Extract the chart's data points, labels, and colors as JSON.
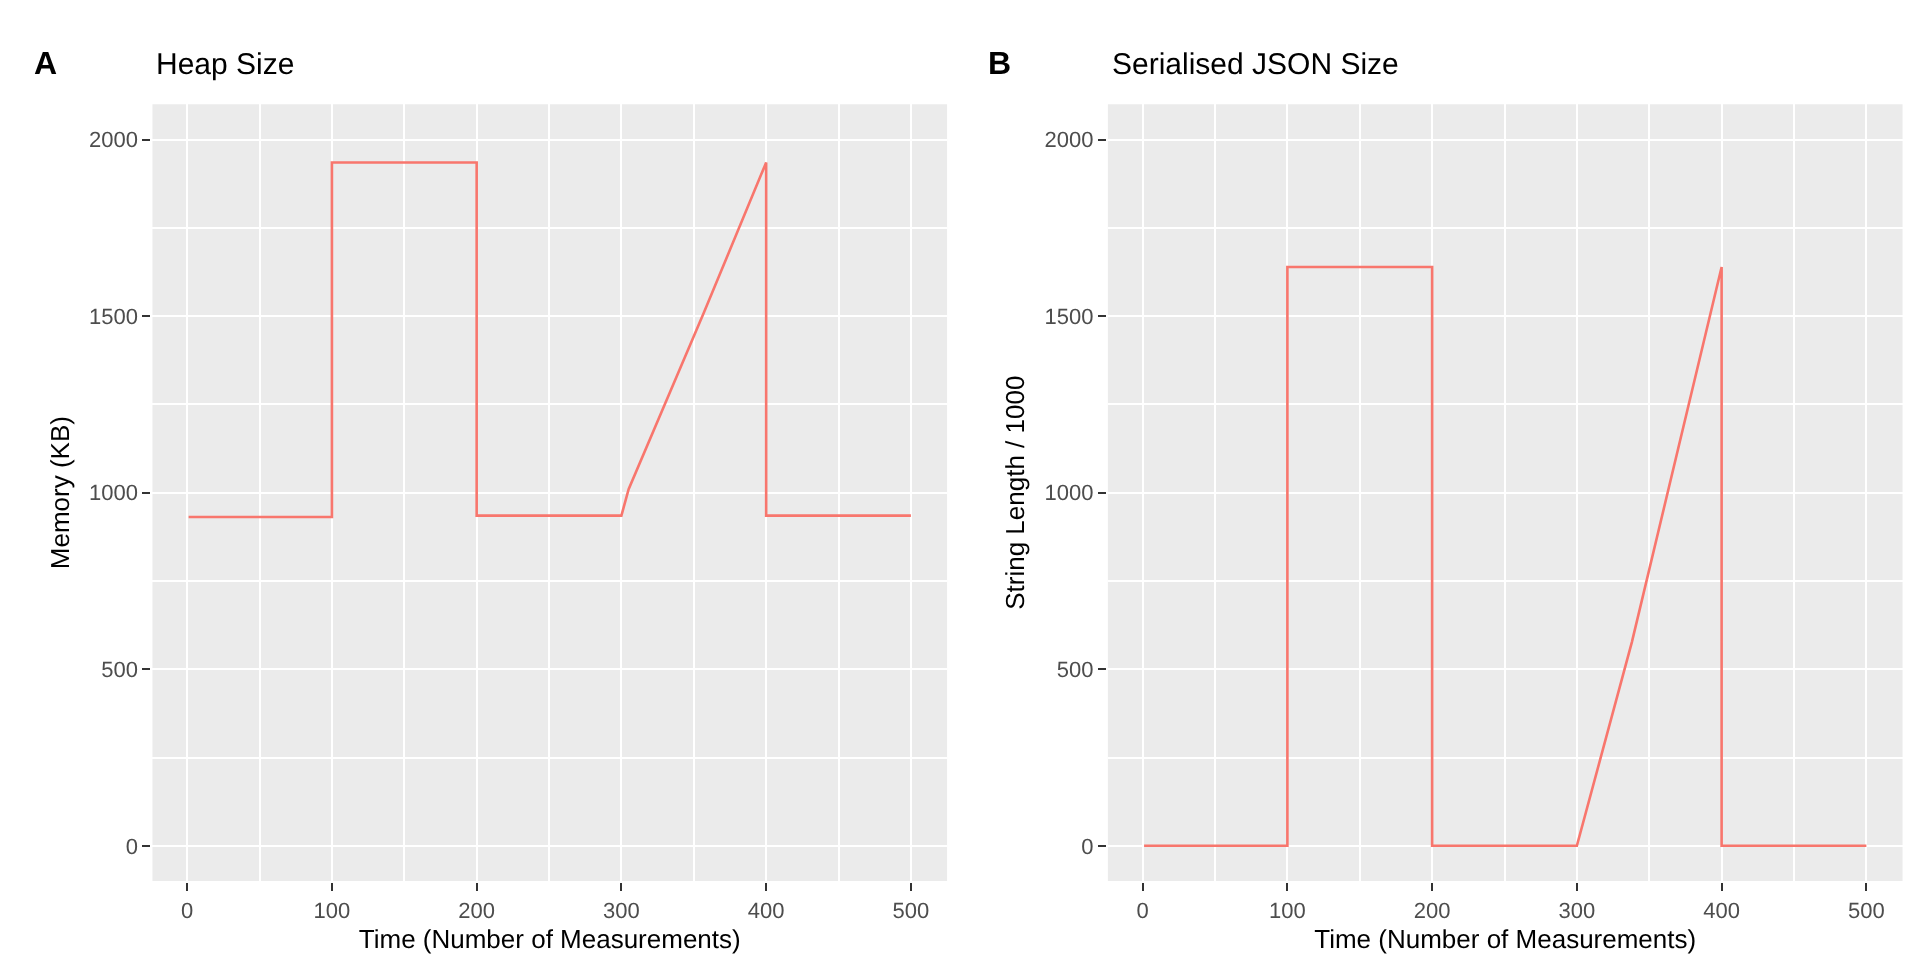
{
  "chart_data": [
    {
      "type": "line",
      "title": "Heap Size",
      "xlabel": "Time (Number of Measurements)",
      "ylabel": "Memory (KB)",
      "annotations": [
        "A"
      ],
      "x": [
        1,
        100,
        100,
        200,
        200,
        300,
        305,
        357,
        400,
        400,
        500
      ],
      "series": [
        {
          "color": "#f8766d",
          "values": [
            931,
            931,
            1935,
            1935,
            935,
            935,
            1010,
            1510,
            1935,
            935,
            935
          ]
        }
      ],
      "xlim": [
        -24,
        525
      ],
      "xticks": [
        0,
        100,
        200,
        300,
        400,
        500
      ],
      "ylim": [
        -100,
        2100
      ],
      "yticks": [
        0,
        500,
        1000,
        1500,
        2000
      ],
      "grid": true
    },
    {
      "type": "line",
      "title": "Serialised JSON Size",
      "xlabel": "Time (Number of Measurements)",
      "ylabel": "String Length / 1000",
      "annotations": [
        "B"
      ],
      "x": [
        1,
        100,
        100,
        200,
        200,
        300,
        338,
        400,
        400,
        500
      ],
      "series": [
        {
          "color": "#f8766d",
          "values": [
            0,
            0,
            1639,
            1639,
            0,
            0,
            577,
            1639,
            0,
            0
          ]
        }
      ],
      "xlim": [
        -24,
        525
      ],
      "xticks": [
        0,
        100,
        200,
        300,
        400,
        500
      ],
      "ylim": [
        -100,
        2100
      ],
      "yticks": [
        0,
        500,
        1000,
        1500,
        2000
      ],
      "grid": true
    }
  ]
}
